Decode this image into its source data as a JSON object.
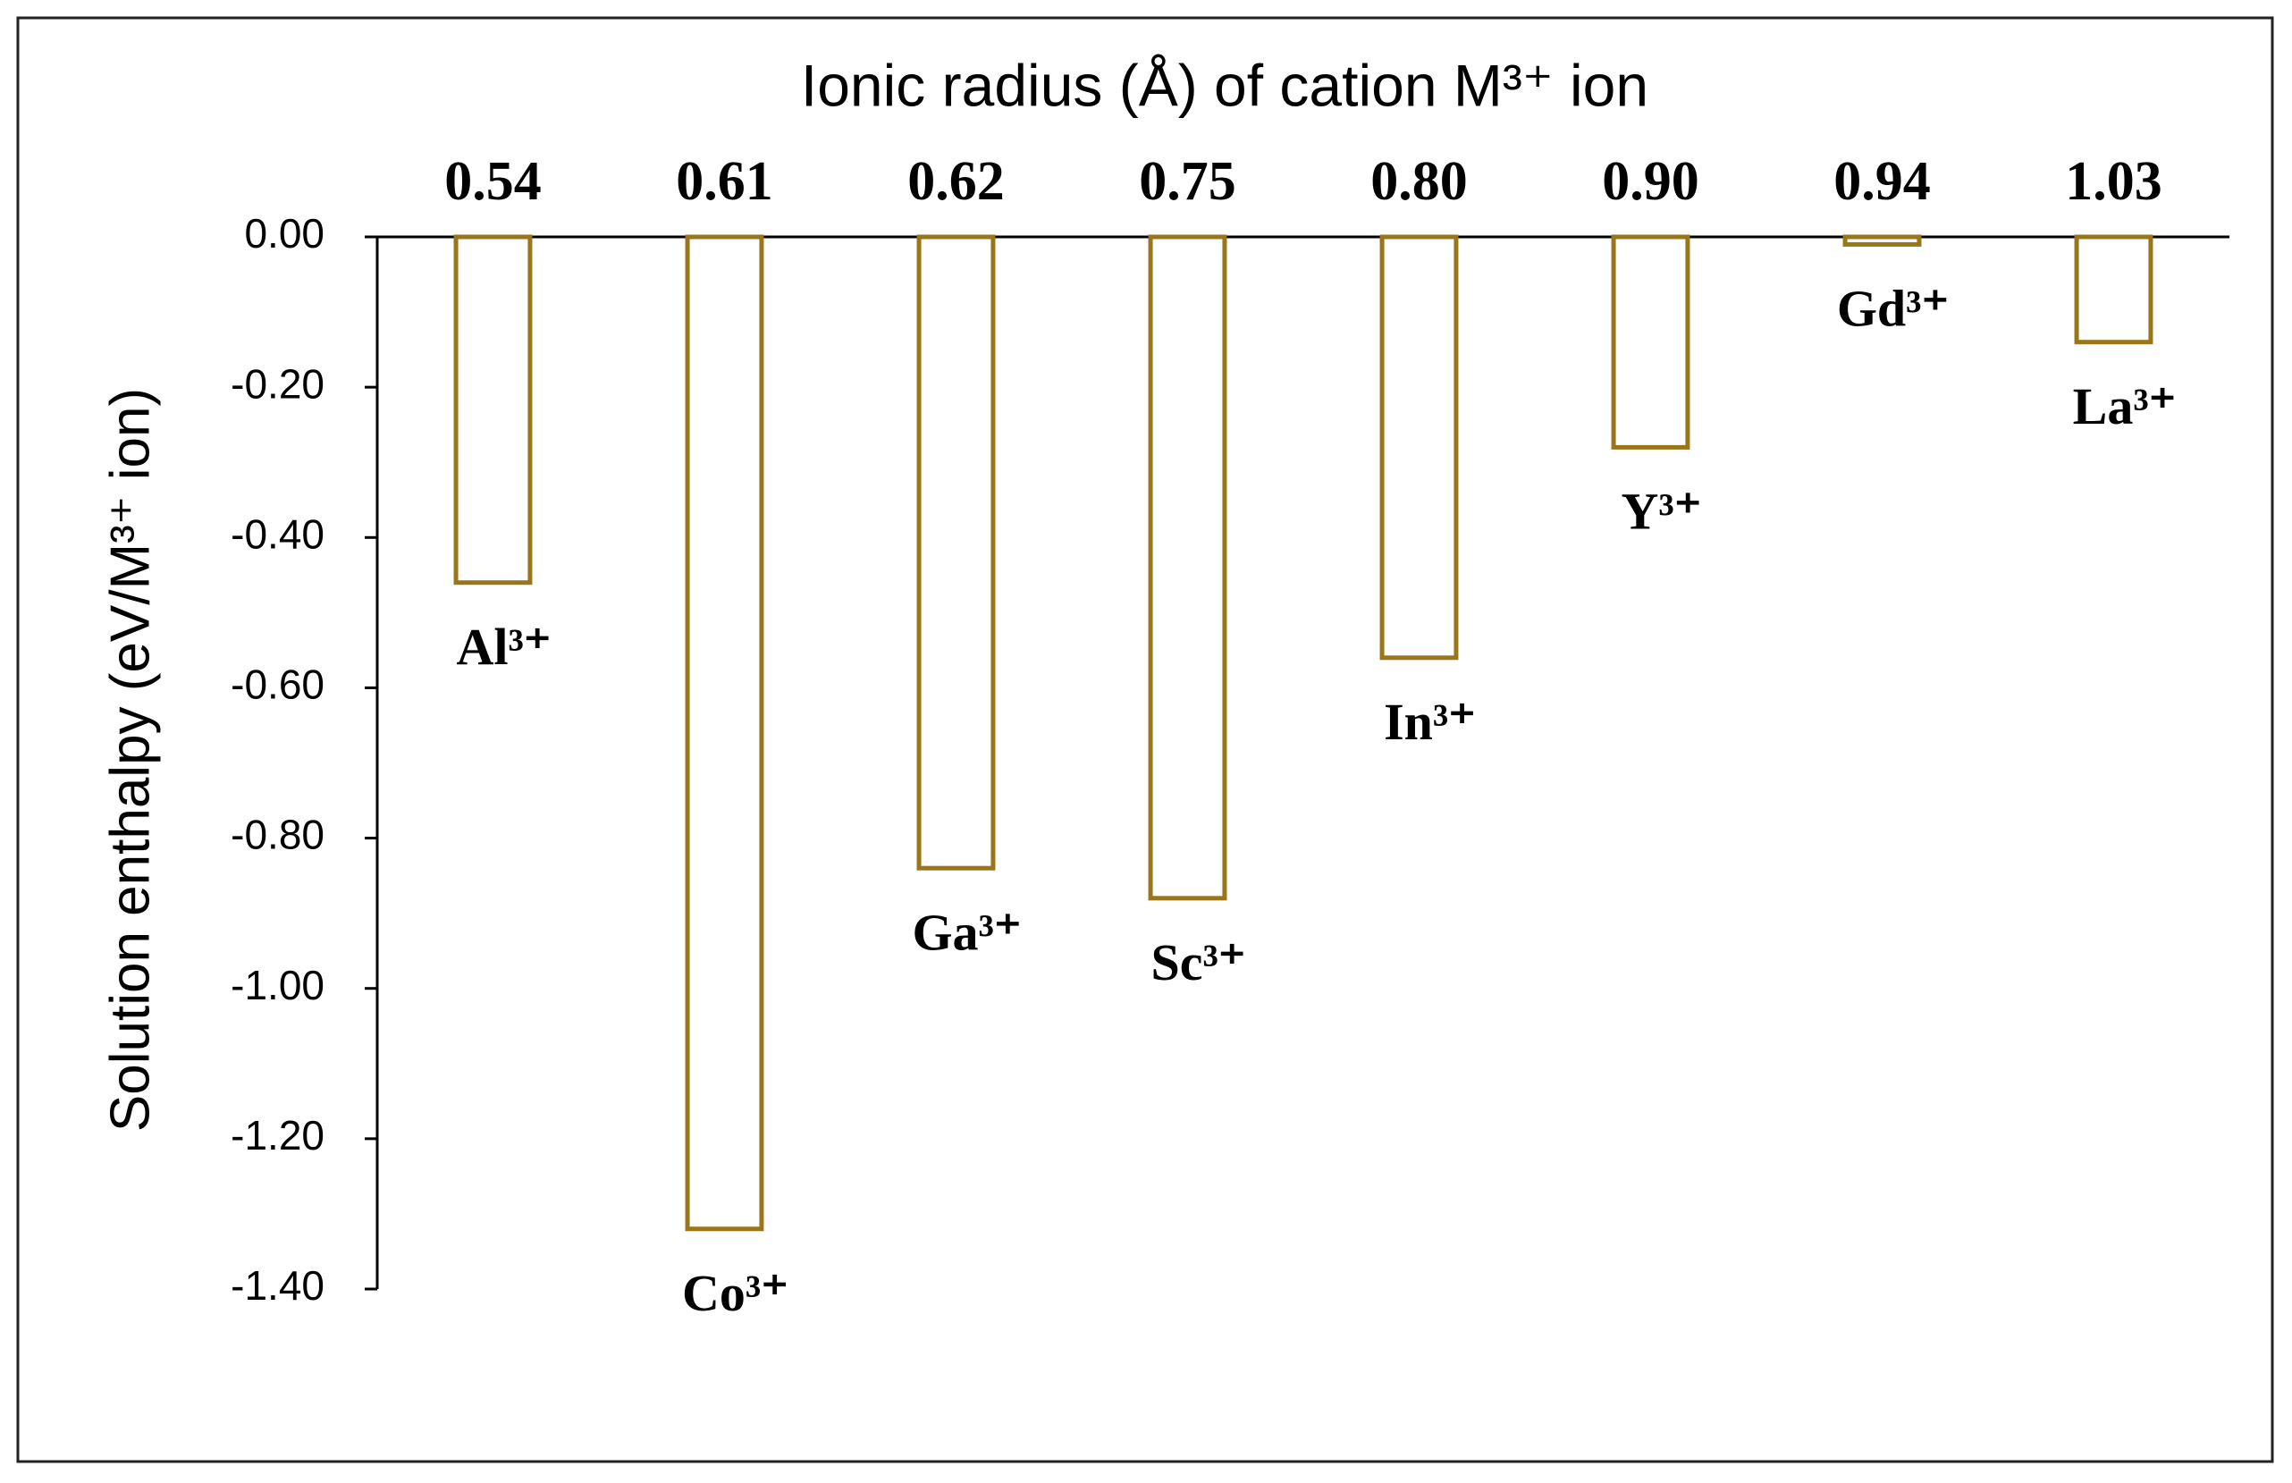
{
  "chart_data": {
    "type": "bar",
    "title": "Ionic radius (Å) of cation M³⁺ ion",
    "y_label": "Solution enthalpy (eV/M³⁺ ion)",
    "categories": [
      "0.54",
      "0.61",
      "0.62",
      "0.75",
      "0.80",
      "0.90",
      "0.94",
      "1.03"
    ],
    "values": [
      -0.46,
      -1.32,
      -0.84,
      -0.88,
      -0.56,
      -0.28,
      -0.01,
      -0.14
    ],
    "annotations": [
      "Al³⁺",
      "Co³⁺",
      "Ga³⁺",
      "Sc³⁺",
      "In³⁺",
      "Y³⁺",
      "Gd³⁺",
      "La³⁺"
    ],
    "color": "#9a7519",
    "ylim": [
      -1.4,
      0
    ],
    "yticks": [
      {
        "value": 0,
        "label": "0.00"
      },
      {
        "value": -0.2,
        "label": "-0.20"
      },
      {
        "value": -0.4,
        "label": "-0.40"
      },
      {
        "value": -0.6,
        "label": "-0.60"
      },
      {
        "value": -0.8,
        "label": "-0.80"
      },
      {
        "value": -1.0,
        "label": "-1.00"
      },
      {
        "value": -1.2,
        "label": "-1.20"
      },
      {
        "value": -1.4,
        "label": "-1.40"
      }
    ],
    "grid": false
  }
}
